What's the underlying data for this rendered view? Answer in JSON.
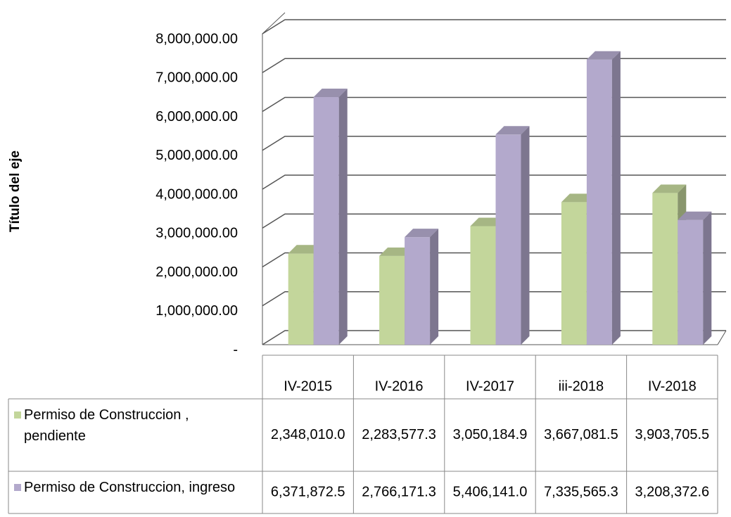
{
  "chart_data": {
    "type": "bar3d",
    "y_axis_label": "Título del eje",
    "categories": [
      "IV-2015",
      "IV-2016",
      "IV-2017",
      "iii-2018",
      "IV-2018"
    ],
    "series": [
      {
        "name": "Permiso de Construccion , pendiente",
        "color": "#c3d69b",
        "values": [
          2348010.0,
          2283577.3,
          3050184.9,
          3667081.5,
          3903705.5
        ],
        "value_labels": [
          "2,348,010.0",
          "2,283,577.3",
          "3,050,184.9",
          "3,667,081.5",
          "3,903,705.5"
        ]
      },
      {
        "name": "Permiso de Construccion, ingreso",
        "color": "#b3a9cc",
        "values": [
          6371872.5,
          2766171.3,
          5406141.0,
          7335565.3,
          3208372.6
        ],
        "value_labels": [
          "6,371,872.5",
          "2,766,171.3",
          "5,406,141.0",
          "7,335,565.3",
          "3,208,372.6"
        ]
      }
    ],
    "ylim": [
      0,
      8000000
    ],
    "yticks": [
      {
        "value": 0,
        "label": "-"
      },
      {
        "value": 1000000,
        "label": "1,000,000.00"
      },
      {
        "value": 2000000,
        "label": "2,000,000.00"
      },
      {
        "value": 3000000,
        "label": "3,000,000.00"
      },
      {
        "value": 4000000,
        "label": "4,000,000.00"
      },
      {
        "value": 5000000,
        "label": "5,000,000.00"
      },
      {
        "value": 6000000,
        "label": "6,000,000.00"
      },
      {
        "value": 7000000,
        "label": "7,000,000.00"
      },
      {
        "value": 8000000,
        "label": "8,000,000.00"
      }
    ],
    "grid": true
  }
}
